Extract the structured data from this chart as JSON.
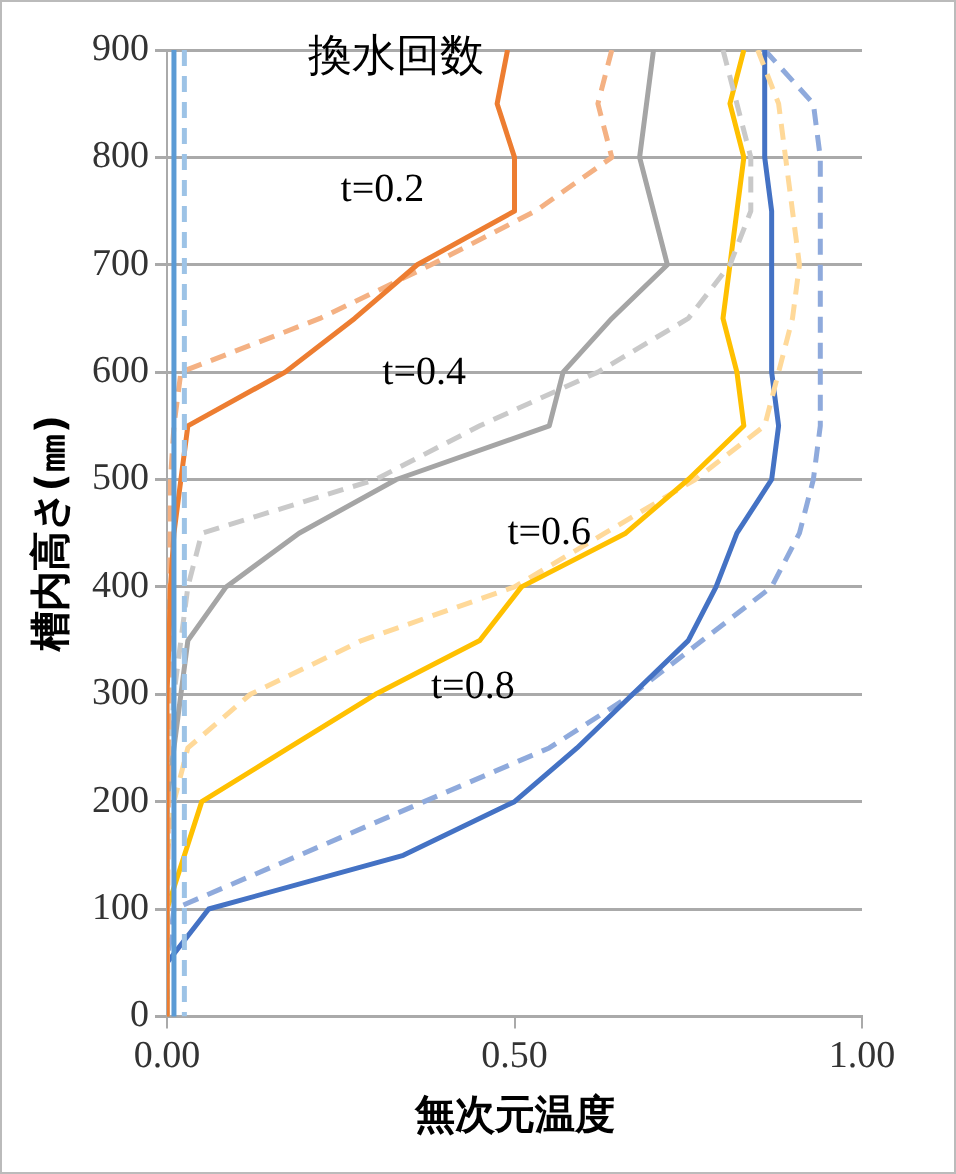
{
  "chart_data": {
    "type": "line",
    "legend_title": "換水回数",
    "xlabel": "無次元温度",
    "ylabel": "槽内高さ(㎜)",
    "xlim": [
      0,
      1
    ],
    "xticks": [
      {
        "value": 0,
        "label": "0.00"
      },
      {
        "value": 0.5,
        "label": "0.50"
      },
      {
        "value": 1,
        "label": "1.00"
      }
    ],
    "ylim": [
      0,
      900
    ],
    "yticks": [
      0,
      100,
      200,
      300,
      400,
      500,
      600,
      700,
      800,
      900
    ],
    "grid": "y",
    "marker": "none",
    "series": [
      {
        "color": "#5b9bd5",
        "line_style": "solid",
        "x": [
          0.01,
          0.01
        ],
        "values": [
          900,
          0
        ]
      },
      {
        "color": "#9dc3e6",
        "line_style": "dashed",
        "x": [
          0.025,
          0.025
        ],
        "values": [
          900,
          0
        ]
      },
      {
        "color": "#ed7d31",
        "line_style": "solid",
        "x": [
          0.49,
          0.475,
          0.5,
          0.5,
          0.36,
          0.27,
          0.17,
          0.03,
          0.02,
          0.01,
          0.005,
          0.003,
          0,
          0
        ],
        "values": [
          900,
          850,
          800,
          750,
          700,
          650,
          600,
          550,
          500,
          450,
          400,
          350,
          300,
          0
        ]
      },
      {
        "color": "#f4b183",
        "line_style": "dashed",
        "x": [
          0.64,
          0.62,
          0.64,
          0.53,
          0.38,
          0.22,
          0.02,
          0.01,
          0.005,
          0
        ],
        "values": [
          900,
          850,
          800,
          750,
          700,
          650,
          600,
          550,
          500,
          0
        ]
      },
      {
        "color": "#a5a5a5",
        "line_style": "solid",
        "x": [
          0.7,
          0.68,
          0.72,
          0.64,
          0.57,
          0.55,
          0.33,
          0.19,
          0.085,
          0.03,
          0.02,
          0.01,
          0,
          0
        ],
        "values": [
          900,
          800,
          700,
          650,
          600,
          550,
          500,
          450,
          400,
          350,
          300,
          250,
          200,
          0
        ]
      },
      {
        "color": "#c9c9c9",
        "line_style": "dashed",
        "x": [
          0.8,
          0.84,
          0.84,
          0.81,
          0.75,
          0.62,
          0.45,
          0.3,
          0.05,
          0.03,
          0.02,
          0.01,
          0.005,
          0,
          0
        ],
        "values": [
          900,
          800,
          750,
          700,
          650,
          600,
          550,
          500,
          450,
          400,
          350,
          300,
          250,
          200,
          0
        ]
      },
      {
        "color": "#ffc000",
        "line_style": "solid",
        "x": [
          0.83,
          0.81,
          0.83,
          0.82,
          0.81,
          0.8,
          0.82,
          0.83,
          0.75,
          0.66,
          0.51,
          0.45,
          0.3,
          0.175,
          0.05,
          0,
          0
        ],
        "values": [
          900,
          850,
          800,
          750,
          700,
          650,
          600,
          550,
          500,
          450,
          400,
          350,
          300,
          250,
          200,
          100,
          0
        ]
      },
      {
        "color": "#ffd999",
        "line_style": "dashed",
        "x": [
          0.85,
          0.88,
          0.89,
          0.9,
          0.91,
          0.9,
          0.88,
          0.86,
          0.76,
          0.63,
          0.5,
          0.28,
          0.12,
          0.03,
          0.01,
          0,
          0
        ],
        "values": [
          900,
          850,
          800,
          750,
          700,
          650,
          600,
          550,
          500,
          450,
          400,
          350,
          300,
          250,
          200,
          150,
          0
        ]
      },
      {
        "color": "#4472c4",
        "line_style": "solid",
        "x": [
          0.86,
          0.86,
          0.86,
          0.87,
          0.87,
          0.87,
          0.87,
          0.88,
          0.87,
          0.82,
          0.79,
          0.75,
          0.67,
          0.59,
          0.5,
          0.34,
          0.06,
          0,
          0
        ],
        "values": [
          900,
          850,
          800,
          750,
          700,
          650,
          600,
          550,
          500,
          450,
          400,
          350,
          300,
          250,
          200,
          150,
          100,
          50,
          0
        ]
      },
      {
        "color": "#8faadc",
        "line_style": "dashed",
        "x": [
          0.86,
          0.93,
          0.94,
          0.94,
          0.94,
          0.94,
          0.94,
          0.94,
          0.93,
          0.91,
          0.87,
          0.77,
          0.67,
          0.55,
          0.37,
          0.19,
          0.01,
          0,
          0
        ],
        "values": [
          900,
          850,
          800,
          750,
          700,
          650,
          600,
          550,
          500,
          450,
          400,
          350,
          300,
          250,
          200,
          150,
          100,
          50,
          0
        ]
      }
    ],
    "annotations": [
      "t=0.2",
      "t=0.4",
      "t=0.6",
      "t=0.8"
    ]
  }
}
